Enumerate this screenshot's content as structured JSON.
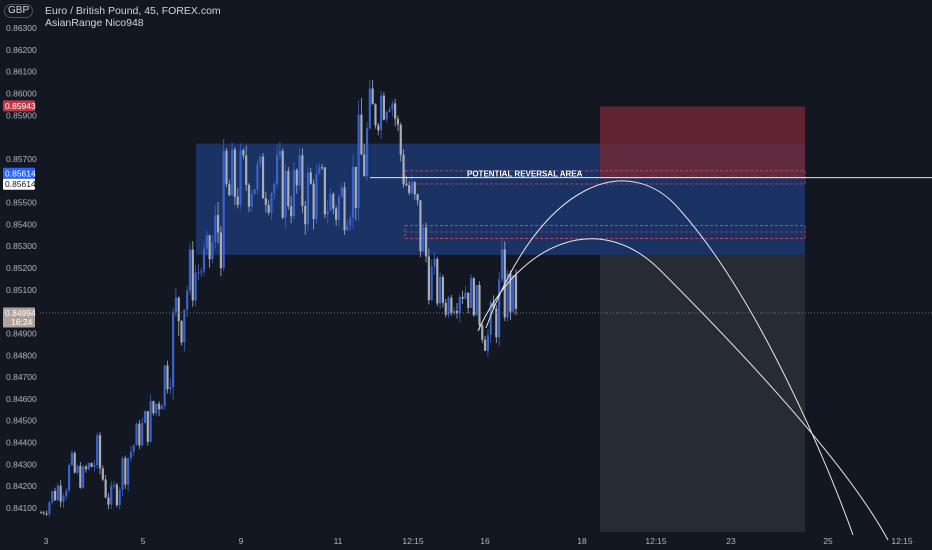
{
  "header": {
    "currency": "GBP",
    "symbol_line": "Euro / British Pound, 45, FOREX.com",
    "indicator_line": "AsianRange Nico948"
  },
  "chart_data": {
    "type": "candlestick",
    "price_ticks": [
      "0.86300",
      "0.86200",
      "0.86100",
      "0.86000",
      "0.85900",
      "0.85700",
      "0.85500",
      "0.85400",
      "0.85300",
      "0.85200",
      "0.85100",
      "0.84900",
      "0.84800",
      "0.84700",
      "0.84600",
      "0.84500",
      "0.84400",
      "0.84300",
      "0.84200",
      "0.84100"
    ],
    "price_range": [
      0.8399,
      0.8641
    ],
    "time_ticks": [
      "3",
      "5",
      "9",
      "11",
      "12:15",
      "16",
      "18",
      "12:15",
      "23",
      "25",
      "12:15"
    ],
    "price_labels": {
      "stop": "0.85943",
      "entry_a": "0.85614",
      "entry_b": "0.85614",
      "current": "0.84994",
      "countdown": "16:24"
    },
    "annotations": [
      "POTENTIAL REVERSAL AREA"
    ],
    "colors": {
      "background": "#131722",
      "up": "#3a63c9",
      "down": "#a9aeb6",
      "range_box": "#1e3a78",
      "stop_zone": "#7a2a33",
      "target_zone": "#2a2d36",
      "stop_label": "#c2384a",
      "entry_label": "#2962ff",
      "current_label": "#b1a39c"
    },
    "ranges": {
      "asian_box": [
        0.8526,
        0.8577
      ],
      "stop_zone": [
        0.8561,
        0.8594
      ],
      "target_zone_bottom": 0.8399,
      "reversal_upper": [
        0.85585,
        0.85645
      ],
      "reversal_lower": [
        0.85335,
        0.85395
      ],
      "entry_line": 0.85614,
      "current_line": 0.84994
    },
    "path_control": [
      [
        0.8412,
        0.8404
      ],
      [
        0.8425,
        0.841
      ],
      [
        0.8437,
        0.8415
      ],
      [
        0.843,
        0.8419
      ],
      [
        0.8445,
        0.8421
      ],
      [
        0.842,
        0.8404
      ],
      [
        0.8442,
        0.842
      ],
      [
        0.8452,
        0.8436
      ],
      [
        0.8465,
        0.844
      ],
      [
        0.849,
        0.846
      ],
      [
        0.8535,
        0.848
      ],
      [
        0.853,
        0.8505
      ],
      [
        0.8536,
        0.8512
      ],
      [
        0.8574,
        0.8518
      ],
      [
        0.8577,
        0.854
      ],
      [
        0.8578,
        0.8546
      ],
      [
        0.8572,
        0.8546
      ],
      [
        0.8576,
        0.8541
      ],
      [
        0.8572,
        0.8538
      ],
      [
        0.8574,
        0.8535
      ],
      [
        0.857,
        0.854
      ],
      [
        0.8566,
        0.853
      ],
      [
        0.857,
        0.854
      ],
      [
        0.8598,
        0.854
      ],
      [
        0.861,
        0.858
      ],
      [
        0.8618,
        0.859
      ],
      [
        0.8575,
        0.855
      ],
      [
        0.856,
        0.852
      ],
      [
        0.8528,
        0.85
      ],
      [
        0.851,
        0.8496
      ],
      [
        0.8528,
        0.85
      ],
      [
        0.8515,
        0.8498
      ],
      [
        0.85,
        0.8475
      ],
      [
        0.853,
        0.849
      ],
      [
        0.8515,
        0.8495
      ]
    ]
  }
}
